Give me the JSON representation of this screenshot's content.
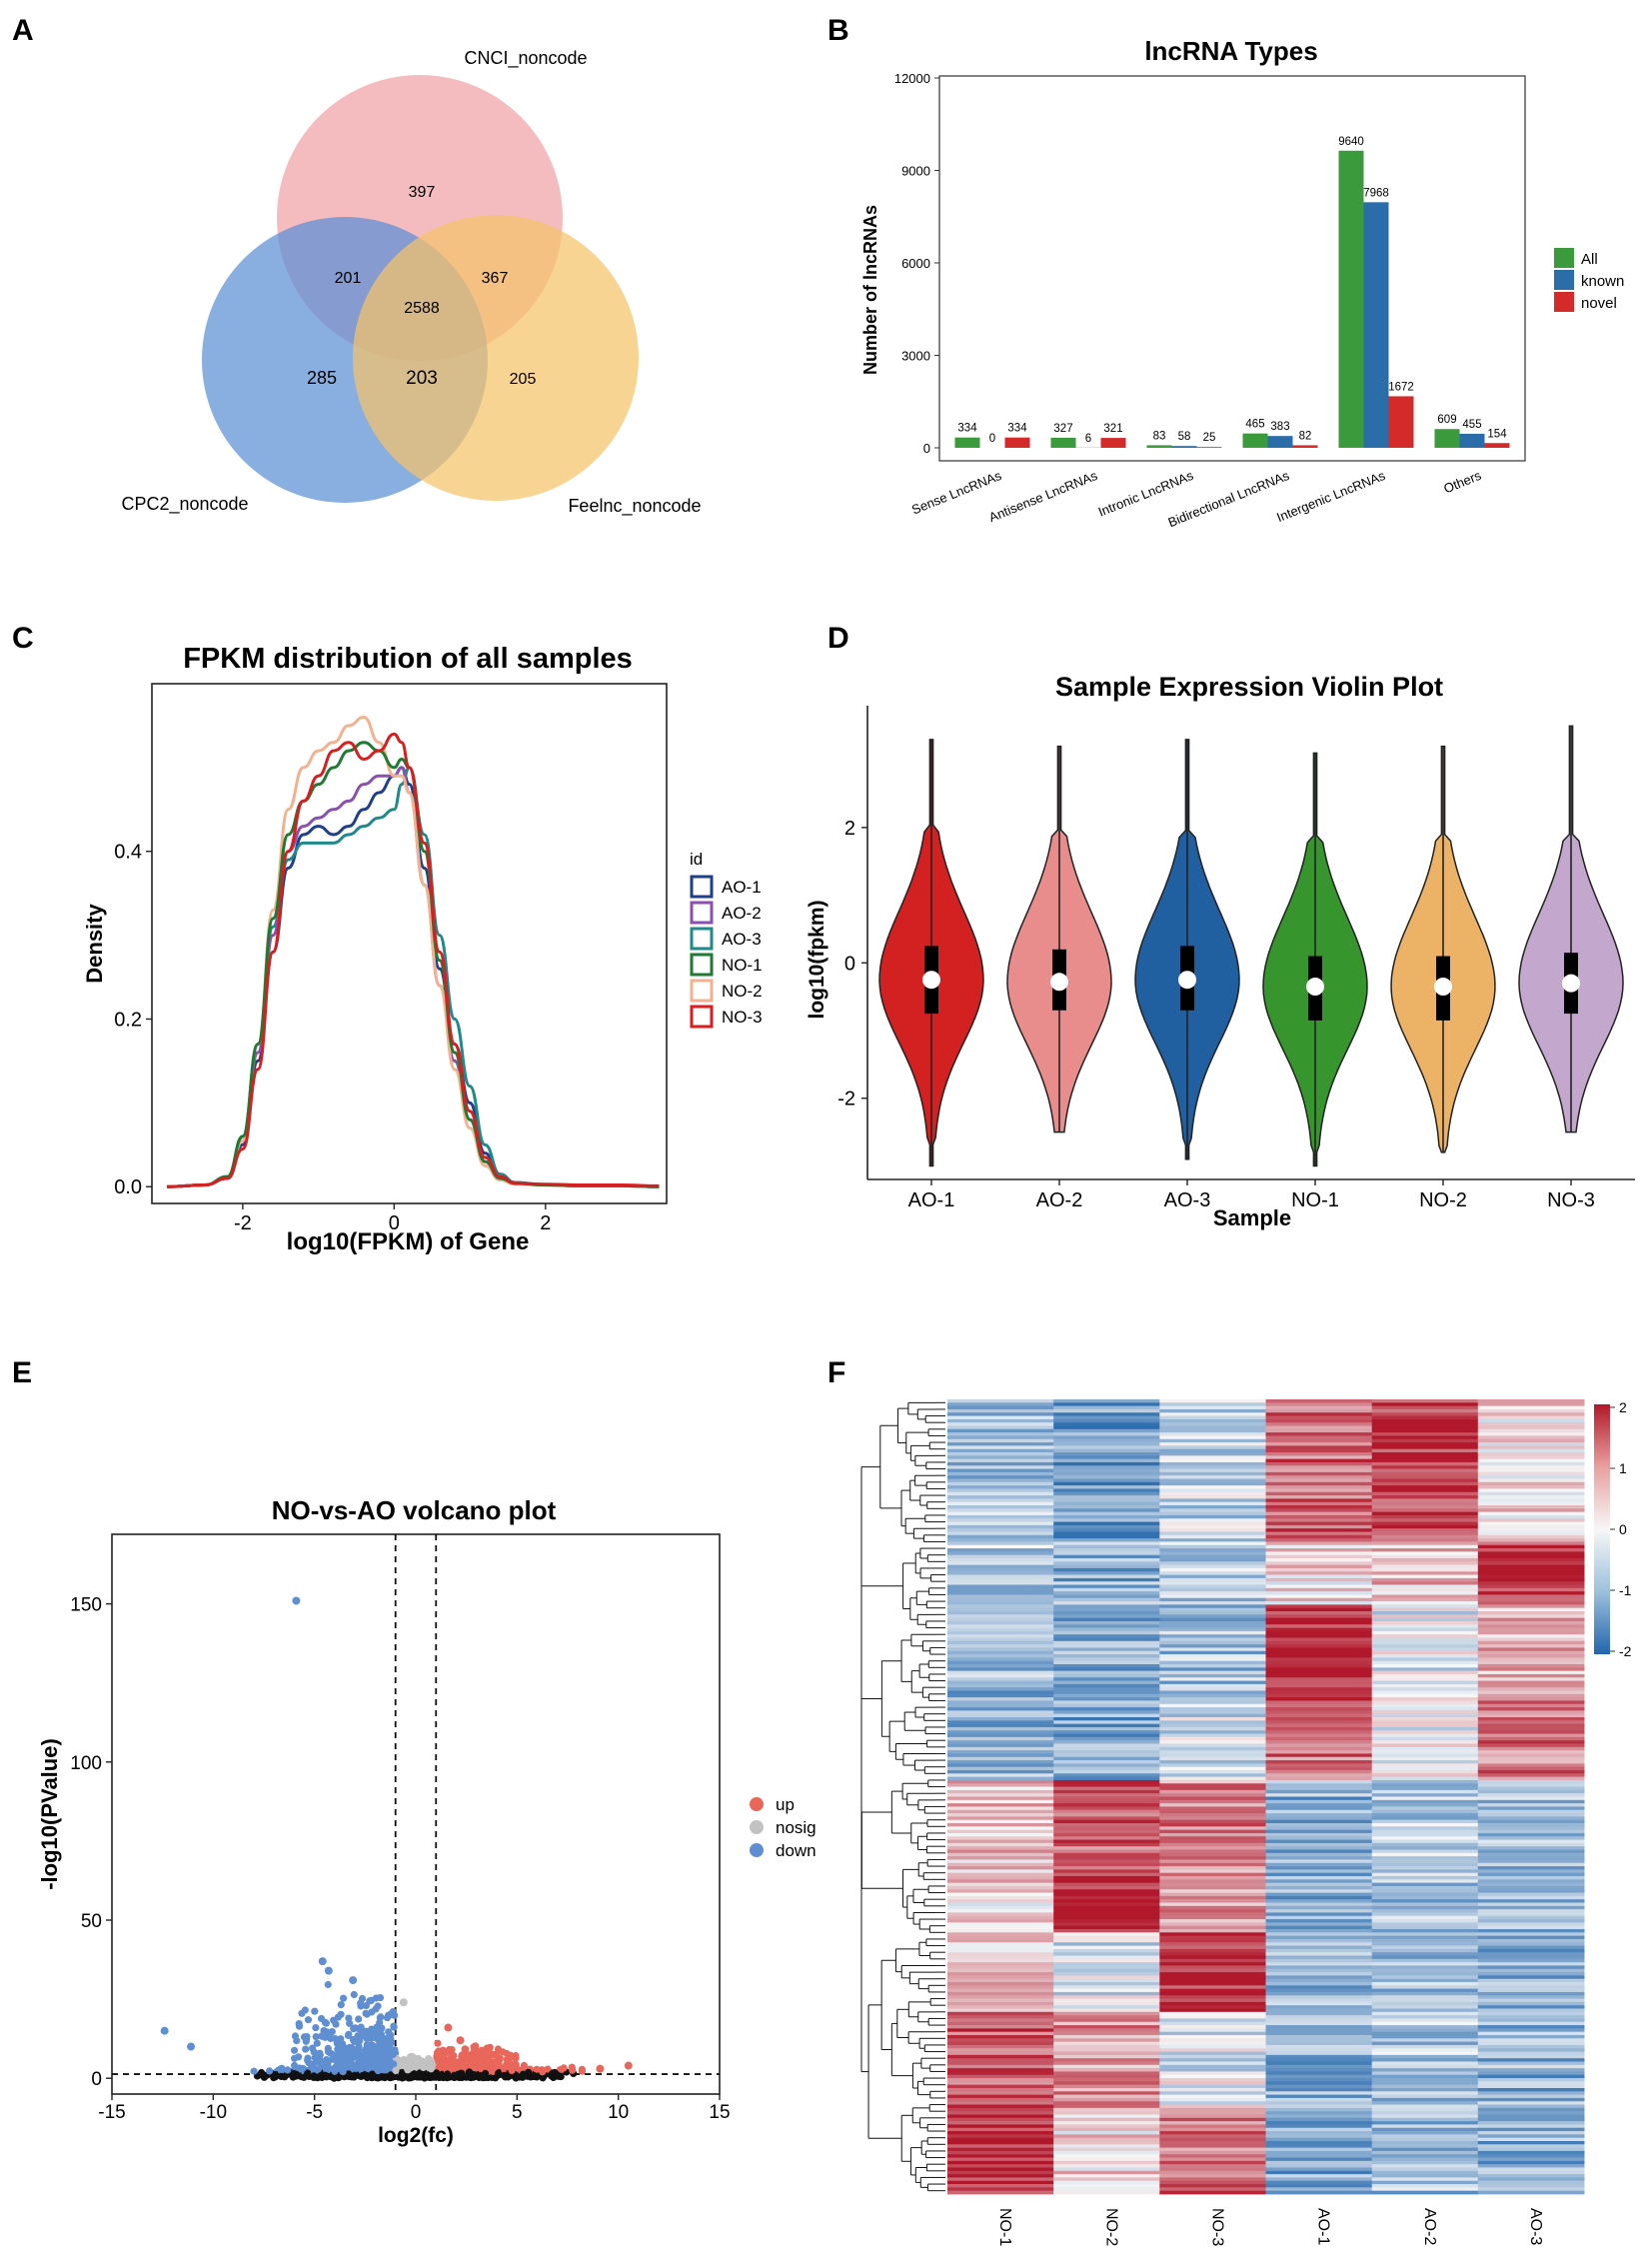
{
  "panels": {
    "A": {
      "letter": "A"
    },
    "B": {
      "letter": "B"
    },
    "C": {
      "letter": "C"
    },
    "D": {
      "letter": "D"
    },
    "E": {
      "letter": "E"
    },
    "F": {
      "letter": "F"
    }
  },
  "colors": {
    "all": "#3a9a3c",
    "known": "#2a6da8",
    "novel": "#d42a2a",
    "venn_cnci": "#f2a6ab",
    "venn_cpc2": "#5b8fd4",
    "venn_feelnc": "#f5c46a",
    "AO-1": "#1f3f8a",
    "AO-2": "#8a4fb0",
    "AO-3": "#1f8a8a",
    "NO-1": "#1f7a32",
    "NO-2": "#f2b290",
    "NO-3": "#d81e1e",
    "violin_AO-1": "#d32020",
    "violin_AO-2": "#e98c8c",
    "violin_AO-3": "#2060a0",
    "violin_NO-1": "#37952e",
    "violin_NO-2": "#ecb366",
    "violin_NO-3": "#c4a7cc",
    "up": "#e8675a",
    "nosig": "#c2c2c2",
    "down": "#5f8fd0",
    "heat_high": "#b2182b",
    "heat_mid": "#f7f7f7",
    "heat_low": "#2166ac"
  },
  "chart_data": [
    {
      "panel": "A",
      "type": "venn",
      "sets": [
        "CNCI_noncode",
        "CPC2_noncode",
        "Feelnc_noncode"
      ],
      "regions": {
        "CNCI_only": 397,
        "CPC2_only": 285,
        "Feelnc_only": 205,
        "CNCI_CPC2": 201,
        "CNCI_Feelnc": 367,
        "CPC2_Feelnc": 203,
        "all_three": 2588
      }
    },
    {
      "panel": "B",
      "type": "bar",
      "title": "lncRNA Types",
      "ylabel": "Number of lncRNAs",
      "ylim": [
        0,
        12000
      ],
      "yticks": [
        "0",
        "3000",
        "6000",
        "9000",
        "12000"
      ],
      "categories": [
        "Sense LncRNAs",
        "Antisense LncRNAs",
        "Intronic LncRNAs",
        "Bidirectional LncRNAs",
        "Intergenic LncRNAs",
        "Others"
      ],
      "series": [
        {
          "name": "All",
          "values": [
            334,
            327,
            83,
            465,
            9640,
            609
          ]
        },
        {
          "name": "known",
          "values": [
            0,
            6,
            58,
            383,
            7968,
            455
          ]
        },
        {
          "name": "novel",
          "values": [
            334,
            321,
            25,
            82,
            1672,
            154
          ]
        }
      ]
    },
    {
      "panel": "C",
      "type": "line",
      "title": "FPKM distribution of all samples",
      "xlabel": "log10(FPKM) of Gene",
      "ylabel": "Density",
      "xlim": [
        -3.2,
        3.6
      ],
      "ylim": [
        -0.02,
        0.6
      ],
      "xticks": [
        "-2",
        "0",
        "2"
      ],
      "yticks": [
        "0.0",
        "0.2",
        "0.4"
      ],
      "legend_title": "id",
      "x": [
        -3.0,
        -2.5,
        -2.2,
        -2.0,
        -1.8,
        -1.6,
        -1.4,
        -1.2,
        -1.0,
        -0.8,
        -0.6,
        -0.4,
        -0.2,
        0.0,
        0.1,
        0.2,
        0.4,
        0.6,
        0.8,
        1.0,
        1.2,
        1.4,
        1.6,
        2.0,
        2.5,
        3.0,
        3.5
      ],
      "series": [
        {
          "name": "AO-1",
          "values": [
            0,
            0.002,
            0.01,
            0.05,
            0.15,
            0.28,
            0.38,
            0.42,
            0.43,
            0.42,
            0.43,
            0.45,
            0.47,
            0.49,
            0.5,
            0.48,
            0.38,
            0.26,
            0.17,
            0.1,
            0.04,
            0.012,
            0.005,
            0.002,
            0.001,
            0.001,
            0
          ]
        },
        {
          "name": "AO-2",
          "values": [
            0,
            0.002,
            0.012,
            0.055,
            0.16,
            0.3,
            0.4,
            0.43,
            0.44,
            0.45,
            0.46,
            0.48,
            0.49,
            0.49,
            0.5,
            0.47,
            0.36,
            0.24,
            0.15,
            0.08,
            0.03,
            0.01,
            0.004,
            0.002,
            0.001,
            0.001,
            0
          ]
        },
        {
          "name": "AO-3",
          "values": [
            0,
            0.002,
            0.012,
            0.06,
            0.17,
            0.31,
            0.39,
            0.41,
            0.41,
            0.41,
            0.42,
            0.43,
            0.44,
            0.45,
            0.48,
            0.5,
            0.42,
            0.3,
            0.2,
            0.12,
            0.05,
            0.015,
            0.005,
            0.002,
            0.001,
            0.001,
            0
          ]
        },
        {
          "name": "NO-1",
          "values": [
            0,
            0.002,
            0.012,
            0.06,
            0.17,
            0.32,
            0.42,
            0.46,
            0.48,
            0.5,
            0.52,
            0.53,
            0.52,
            0.5,
            0.51,
            0.5,
            0.4,
            0.27,
            0.16,
            0.08,
            0.03,
            0.01,
            0.004,
            0.002,
            0.001,
            0.001,
            0
          ]
        },
        {
          "name": "NO-2",
          "values": [
            0,
            0.002,
            0.012,
            0.055,
            0.17,
            0.33,
            0.45,
            0.5,
            0.52,
            0.53,
            0.55,
            0.56,
            0.53,
            0.49,
            0.49,
            0.47,
            0.36,
            0.24,
            0.14,
            0.07,
            0.025,
            0.008,
            0.003,
            0.002,
            0.001,
            0.001,
            0
          ]
        },
        {
          "name": "NO-3",
          "values": [
            0,
            0.002,
            0.01,
            0.045,
            0.14,
            0.28,
            0.4,
            0.46,
            0.49,
            0.52,
            0.53,
            0.51,
            0.52,
            0.54,
            0.53,
            0.5,
            0.41,
            0.28,
            0.17,
            0.09,
            0.035,
            0.012,
            0.004,
            0.003,
            0.002,
            0.002,
            0.001
          ]
        }
      ]
    },
    {
      "panel": "D",
      "type": "violin",
      "title": "Sample Expression Violin Plot",
      "xlabel": "Sample",
      "ylabel": "log10(fpkm)",
      "ylim": [
        -3.2,
        3.8
      ],
      "yticks": [
        "-2",
        "0",
        "2"
      ],
      "categories": [
        "AO-1",
        "AO-2",
        "AO-3",
        "NO-1",
        "NO-2",
        "NO-3"
      ],
      "stats": [
        {
          "min": -3.0,
          "q1": -0.75,
          "median": -0.25,
          "q3": 0.25,
          "max": 3.3
        },
        {
          "min": -2.5,
          "q1": -0.7,
          "median": -0.28,
          "q3": 0.2,
          "max": 3.2
        },
        {
          "min": -2.9,
          "q1": -0.7,
          "median": -0.25,
          "q3": 0.25,
          "max": 3.3
        },
        {
          "min": -3.0,
          "q1": -0.85,
          "median": -0.35,
          "q3": 0.1,
          "max": 3.1
        },
        {
          "min": -2.8,
          "q1": -0.85,
          "median": -0.35,
          "q3": 0.1,
          "max": 3.2
        },
        {
          "min": -2.5,
          "q1": -0.75,
          "median": -0.3,
          "q3": 0.15,
          "max": 3.5
        }
      ]
    },
    {
      "panel": "E",
      "type": "scatter",
      "title": "NO-vs-AO volcano plot",
      "xlabel": "log2(fc)",
      "ylabel": "-log10(PValue)",
      "xlim": [
        -15,
        15
      ],
      "ylim": [
        -5,
        172
      ],
      "xticks": [
        "-15",
        "-10",
        "-5",
        "0",
        "5",
        "10",
        "15"
      ],
      "yticks": [
        "0",
        "50",
        "100",
        "150"
      ],
      "legend": [
        "up",
        "nosig",
        "down"
      ],
      "thresholds": {
        "log2fc": [
          -1,
          1
        ],
        "pvalue_line": 1.3
      },
      "highlight_points": [
        {
          "x": -5.9,
          "y": 151,
          "group": "down"
        },
        {
          "x": -12.4,
          "y": 15,
          "group": "down"
        },
        {
          "x": -11.1,
          "y": 10,
          "group": "down"
        },
        {
          "x": -4.6,
          "y": 37,
          "group": "down"
        },
        {
          "x": -4.3,
          "y": 34,
          "group": "down"
        },
        {
          "x": -3.1,
          "y": 31,
          "group": "down"
        },
        {
          "x": -0.6,
          "y": 24,
          "group": "nosig"
        },
        {
          "x": 1.6,
          "y": 16,
          "group": "up"
        },
        {
          "x": 2.2,
          "y": 12,
          "group": "up"
        },
        {
          "x": 10.5,
          "y": 4,
          "group": "up"
        },
        {
          "x": 9.1,
          "y": 3,
          "group": "up"
        }
      ]
    },
    {
      "panel": "F",
      "type": "heatmap",
      "columns": [
        "NO-1",
        "NO-2",
        "NO-3",
        "AO-1",
        "AO-2",
        "AO-3"
      ],
      "scale_ticks": [
        "2",
        "1",
        "0",
        "-1",
        "-2"
      ],
      "scale_range": [
        -2,
        2
      ],
      "blocks": [
        {
          "rows_fraction": 0.18,
          "values": [
            -0.8,
            -1.2,
            -0.5,
            1.3,
            1.7,
            0.3
          ]
        },
        {
          "rows_fraction": 0.08,
          "values": [
            -0.7,
            -1.0,
            -0.6,
            0.2,
            0.5,
            1.8
          ]
        },
        {
          "rows_fraction": 0.12,
          "values": [
            -0.9,
            -1.1,
            -0.8,
            1.9,
            -0.2,
            0.6
          ]
        },
        {
          "rows_fraction": 0.1,
          "values": [
            -0.9,
            -1.1,
            -0.4,
            1.2,
            -0.1,
            1.1
          ]
        },
        {
          "rows_fraction": 0.12,
          "values": [
            0.5,
            1.4,
            1.0,
            -1.0,
            -0.6,
            -0.9
          ]
        },
        {
          "rows_fraction": 0.07,
          "values": [
            0.3,
            1.9,
            0.8,
            -1.0,
            -0.8,
            -1.0
          ]
        },
        {
          "rows_fraction": 0.1,
          "values": [
            0.4,
            -0.3,
            1.8,
            -0.9,
            -0.7,
            -1.0
          ]
        },
        {
          "rows_fraction": 0.12,
          "values": [
            1.5,
            0.9,
            -0.2,
            -1.0,
            -0.7,
            -1.0
          ]
        },
        {
          "rows_fraction": 0.11,
          "values": [
            1.8,
            0.2,
            1.2,
            -1.1,
            -0.8,
            -1.0
          ]
        }
      ]
    }
  ]
}
